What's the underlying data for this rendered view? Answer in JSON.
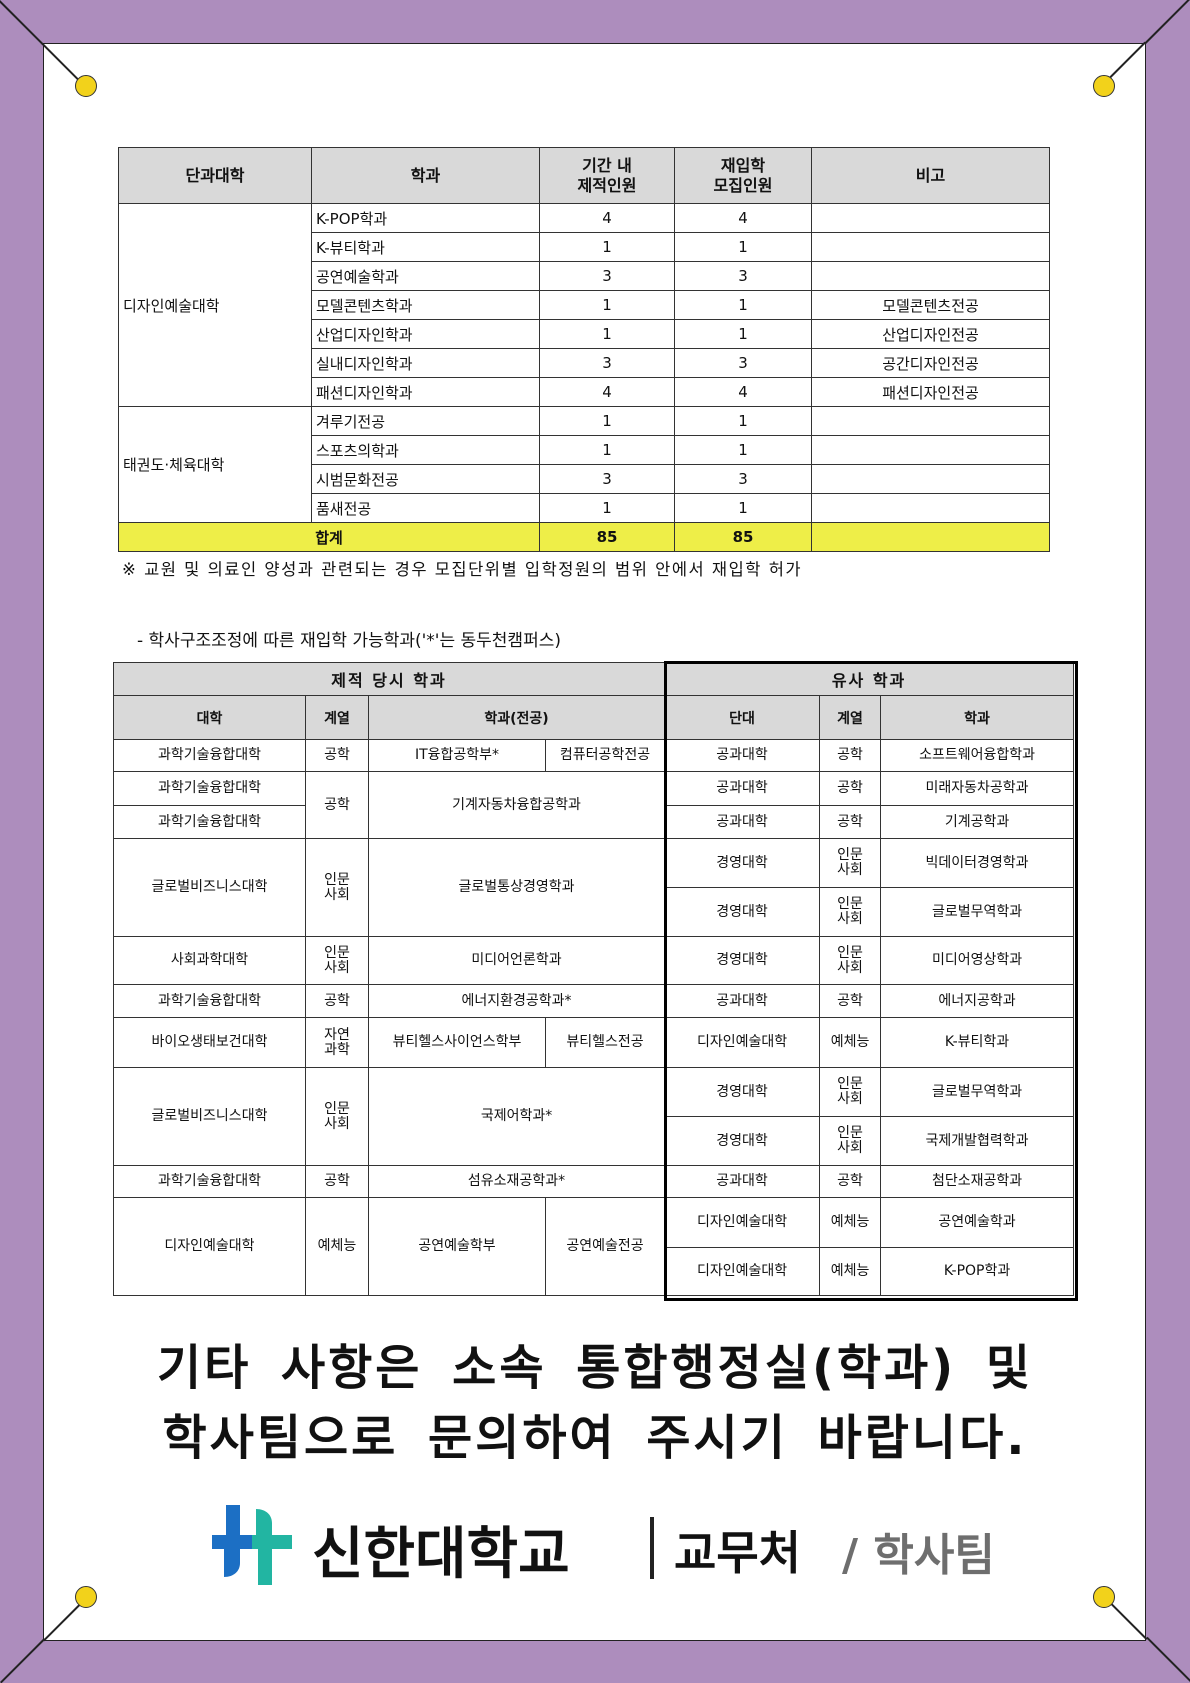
{
  "table1": {
    "headers": [
      "단과대학",
      "학과",
      "기간 내\n제적인원",
      "재입학\n모집인원",
      "비고"
    ],
    "groups": [
      {
        "college": "디자인예술대학",
        "rows": [
          {
            "dept": "K-POP학과",
            "expelled": "4",
            "recruit": "4",
            "note": ""
          },
          {
            "dept": "K-뷰티학과",
            "expelled": "1",
            "recruit": "1",
            "note": ""
          },
          {
            "dept": "공연예술학과",
            "expelled": "3",
            "recruit": "3",
            "note": ""
          },
          {
            "dept": "모델콘텐츠학과",
            "expelled": "1",
            "recruit": "1",
            "note": "모델콘텐츠전공"
          },
          {
            "dept": "산업디자인학과",
            "expelled": "1",
            "recruit": "1",
            "note": "산업디자인전공"
          },
          {
            "dept": "실내디자인학과",
            "expelled": "3",
            "recruit": "3",
            "note": "공간디자인전공"
          },
          {
            "dept": "패션디자인학과",
            "expelled": "4",
            "recruit": "4",
            "note": "패션디자인전공"
          }
        ]
      },
      {
        "college": "태권도·체육대학",
        "rows": [
          {
            "dept": "겨루기전공",
            "expelled": "1",
            "recruit": "1",
            "note": ""
          },
          {
            "dept": "스포츠의학과",
            "expelled": "1",
            "recruit": "1",
            "note": ""
          },
          {
            "dept": "시범문화전공",
            "expelled": "3",
            "recruit": "3",
            "note": ""
          },
          {
            "dept": "품새전공",
            "expelled": "1",
            "recruit": "1",
            "note": ""
          }
        ]
      }
    ],
    "total": {
      "label": "합계",
      "expelled": "85",
      "recruit": "85"
    },
    "highlight_color": "#eeee48"
  },
  "note": "※ 교원 및 의료인 양성과 관련되는 경우 모집단위별 입학정원의 범위 안에서 재입학 허가",
  "subheading": "- 학사구조조정에 따른 재입학 가능학과('*'는 동두천캠퍼스)",
  "table2": {
    "group_headers": [
      "제적 당시 학과",
      "유사 학과"
    ],
    "headers": [
      "대학",
      "계열",
      "학과(전공)",
      "단대",
      "계열",
      "학과"
    ],
    "rows": [
      {
        "cells": [
          {
            "t": "과학기술융합대학"
          },
          {
            "t": "공학"
          },
          {
            "t": "IT융합공학부*"
          },
          {
            "t": "컴퓨터공학전공"
          },
          {
            "t": "공과대학"
          },
          {
            "t": "공학"
          },
          {
            "t": "소프트웨어융합학과"
          }
        ]
      },
      {
        "cells": [
          {
            "t": "과학기술융합대학"
          },
          {
            "t": "공학",
            "rs": 2
          },
          {
            "t": "기계자동차융합공학과",
            "rs": 2,
            "cs": 2
          },
          {
            "t": "공과대학"
          },
          {
            "t": "공학"
          },
          {
            "t": "미래자동차공학과"
          }
        ]
      },
      {
        "cells": [
          {
            "t": "과학기술융합대학"
          },
          {
            "t": "공과대학"
          },
          {
            "t": "공학"
          },
          {
            "t": "기계공학과"
          }
        ]
      },
      {
        "cells": [
          {
            "t": "글로벌비즈니스대학",
            "rs": 2
          },
          {
            "t": "인문\n사회",
            "rs": 2
          },
          {
            "t": "글로벌통상경영학과",
            "rs": 2,
            "cs": 2
          },
          {
            "t": "경영대학"
          },
          {
            "t": "인문\n사회"
          },
          {
            "t": "빅데이터경영학과"
          }
        ]
      },
      {
        "cells": [
          {
            "t": "경영대학"
          },
          {
            "t": "인문\n사회"
          },
          {
            "t": "글로벌무역학과"
          }
        ]
      },
      {
        "cells": [
          {
            "t": "사회과학대학"
          },
          {
            "t": "인문\n사회"
          },
          {
            "t": "미디어언론학과",
            "cs": 2
          },
          {
            "t": "경영대학"
          },
          {
            "t": "인문\n사회"
          },
          {
            "t": "미디어영상학과"
          }
        ]
      },
      {
        "cells": [
          {
            "t": "과학기술융합대학"
          },
          {
            "t": "공학"
          },
          {
            "t": "에너지환경공학과*",
            "cs": 2
          },
          {
            "t": "공과대학"
          },
          {
            "t": "공학"
          },
          {
            "t": "에너지공학과"
          }
        ]
      },
      {
        "cells": [
          {
            "t": "바이오생태보건대학"
          },
          {
            "t": "자연\n과학"
          },
          {
            "t": "뷰티헬스사이언스학부"
          },
          {
            "t": "뷰티헬스전공"
          },
          {
            "t": "디자인예술대학"
          },
          {
            "t": "예체능"
          },
          {
            "t": "K-뷰티학과"
          }
        ]
      },
      {
        "cells": [
          {
            "t": "글로벌비즈니스대학",
            "rs": 2
          },
          {
            "t": "인문\n사회",
            "rs": 2
          },
          {
            "t": "국제어학과*",
            "rs": 2,
            "cs": 2
          },
          {
            "t": "경영대학"
          },
          {
            "t": "인문\n사회"
          },
          {
            "t": "글로벌무역학과"
          }
        ]
      },
      {
        "cells": [
          {
            "t": "경영대학"
          },
          {
            "t": "인문\n사회"
          },
          {
            "t": "국제개발협력학과"
          }
        ]
      },
      {
        "cells": [
          {
            "t": "과학기술융합대학"
          },
          {
            "t": "공학"
          },
          {
            "t": "섬유소재공학과*",
            "cs": 2
          },
          {
            "t": "공과대학"
          },
          {
            "t": "공학"
          },
          {
            "t": "첨단소재공학과"
          }
        ]
      },
      {
        "cells": [
          {
            "t": "디자인예술대학",
            "rs": 2
          },
          {
            "t": "예체능",
            "rs": 2
          },
          {
            "t": "공연예술학부",
            "rs": 2
          },
          {
            "t": "공연예술전공",
            "rs": 2
          },
          {
            "t": "디자인예술대학"
          },
          {
            "t": "예체능"
          },
          {
            "t": "공연예술학과"
          }
        ]
      },
      {
        "cells": [
          {
            "t": "디자인예술대학"
          },
          {
            "t": "예체능"
          },
          {
            "t": "K-POP학과"
          }
        ]
      }
    ]
  },
  "closing": {
    "line1": "기타 사항은 소속 통합행정실(학과) 및",
    "line2": "학사팀으로 문의하여 주시기 바랍니다."
  },
  "logo": {
    "university": "신한대학교",
    "department": "교무처",
    "team": "/ 학사팀",
    "colors": {
      "blue": "#1c6fc4",
      "teal": "#22b5a2"
    }
  },
  "frame": {
    "border_color": "#ad8dbd",
    "pin_color": "#f2d21b"
  }
}
